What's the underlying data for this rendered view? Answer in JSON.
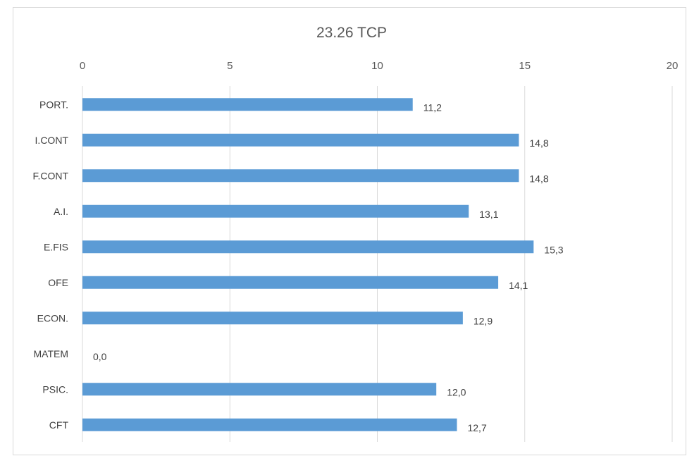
{
  "chart_data": {
    "type": "bar",
    "orientation": "horizontal",
    "title": "23.26 TCP",
    "xlim": [
      0,
      20
    ],
    "x_ticks": [
      "0",
      "5",
      "10",
      "15",
      "20"
    ],
    "x_tick_values": [
      0,
      5,
      10,
      15,
      20
    ],
    "x_axis_position": "top",
    "grid": true,
    "categories": [
      "PORT.",
      "I.CONT",
      "F.CONT",
      "A.I.",
      "E.FIS",
      "OFE",
      "ECON.",
      "MATEM",
      "PSIC.",
      "CFT"
    ],
    "values": [
      11.2,
      14.8,
      14.8,
      13.1,
      15.3,
      14.1,
      12.9,
      0.0,
      12.0,
      12.7
    ],
    "data_labels": [
      "11,2",
      "14,8",
      "14,8",
      "13,1",
      "15,3",
      "14,1",
      "12,9",
      "0,0",
      "12,0",
      "12,7"
    ],
    "bar_color": "#5b9bd5"
  }
}
